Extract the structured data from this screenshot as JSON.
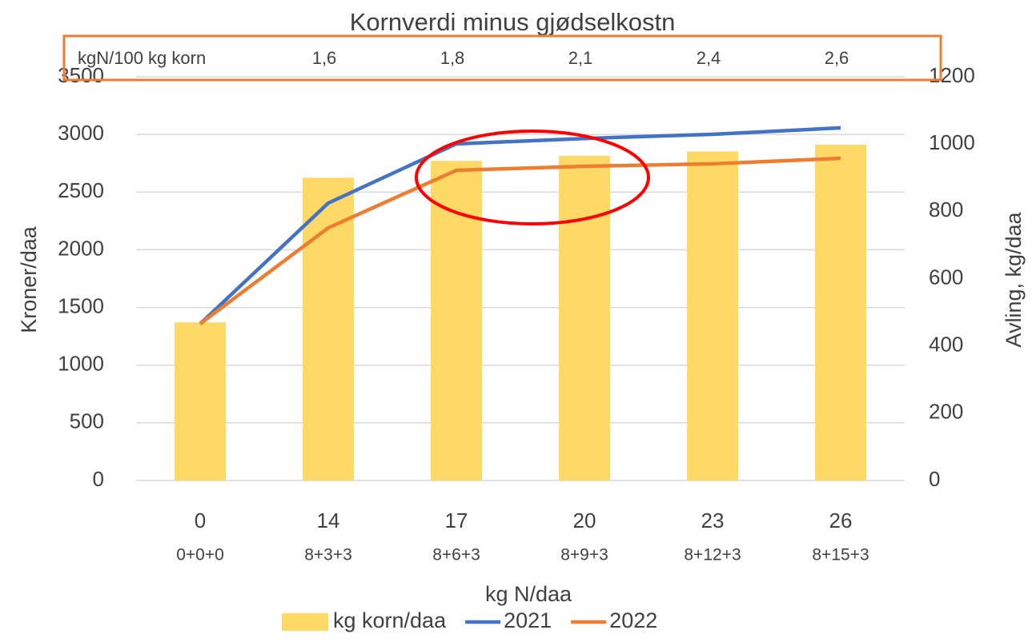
{
  "chart_data": {
    "type": "bar",
    "title": "Kornverdi minus gjødselkostn",
    "x_label": "kg N/daa",
    "y_label": "Kroner/daa",
    "y2_label": "Avling, kg/daa",
    "categories": [
      "0",
      "14",
      "17",
      "20",
      "23",
      "26"
    ],
    "sub_categories": [
      "0+0+0",
      "8+3+3",
      "8+6+3",
      "8+9+3",
      "8+12+3",
      "8+15+3"
    ],
    "top_row": {
      "label": "kgN/100 kg korn",
      "values": [
        "1,6",
        "1,8",
        "2,1",
        "2,4",
        "2,6"
      ]
    },
    "series": [
      {
        "name": "kg korn/daa",
        "type": "bar",
        "axis": "y2",
        "color": "#FFD966",
        "values": [
          470,
          900,
          950,
          965,
          978,
          998
        ]
      },
      {
        "name": "2021",
        "type": "line",
        "color": "#4472C4",
        "values": [
          1358,
          2405,
          2918,
          2965,
          3001,
          3057
        ]
      },
      {
        "name": "2022",
        "type": "line",
        "color": "#ED7D31",
        "values": [
          1358,
          2190,
          2689,
          2724,
          2745,
          2793
        ]
      }
    ],
    "ylim": [
      0,
      3500
    ],
    "yticks": [
      0,
      500,
      1000,
      1500,
      2000,
      2500,
      3000,
      3500
    ],
    "y2lim": [
      0,
      1200
    ],
    "y2ticks": [
      0,
      200,
      400,
      600,
      800,
      1000,
      1200
    ],
    "grid": true,
    "legend": "bottom"
  }
}
